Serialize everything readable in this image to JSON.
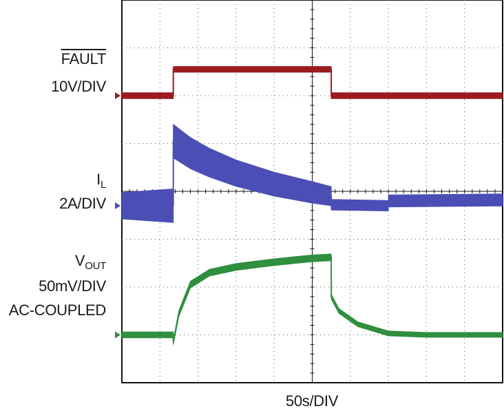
{
  "chart_data": {
    "type": "line",
    "title": "",
    "xlabel": "50s/DIV",
    "grid": true,
    "x_divisions": 10,
    "y_divisions": 8,
    "series": [
      {
        "name": "FAULT",
        "scale": "10V/DIV",
        "color": "#9b1b1f",
        "reference_level_div": 6.0,
        "points": [
          [
            0,
            6.0
          ],
          [
            1.35,
            6.0
          ],
          [
            1.35,
            6.55
          ],
          [
            5.5,
            6.55
          ],
          [
            5.5,
            6.0
          ],
          [
            10,
            6.0
          ]
        ]
      },
      {
        "name": "IL",
        "scale": "2A/DIV",
        "color": "#4b4eb5",
        "reference_level_div": 3.7,
        "points": [
          [
            0,
            3.7
          ],
          [
            1.35,
            3.7
          ],
          [
            1.35,
            5.05
          ],
          [
            1.8,
            4.8
          ],
          [
            2.3,
            4.6
          ],
          [
            3.0,
            4.38
          ],
          [
            4.0,
            4.15
          ],
          [
            5.0,
            3.98
          ],
          [
            5.5,
            3.9
          ],
          [
            5.5,
            3.72
          ],
          [
            7.0,
            3.7
          ],
          [
            7.0,
            3.8
          ],
          [
            10,
            3.82
          ]
        ],
        "ripple_div": [
          0.55,
          0.7,
          0.7,
          0.65,
          0.6,
          0.55,
          0.5,
          0.45,
          0.4,
          0.22,
          0.22,
          0.25,
          0.25
        ]
      },
      {
        "name": "VOUT",
        "scale": "50mV/DIV",
        "coupling": "AC-COUPLED",
        "color": "#2f8f3e",
        "reference_level_div": 1.0,
        "points": [
          [
            0,
            1.0
          ],
          [
            1.35,
            1.0
          ],
          [
            1.35,
            0.85
          ],
          [
            1.5,
            1.45
          ],
          [
            1.8,
            2.05
          ],
          [
            2.3,
            2.3
          ],
          [
            3.0,
            2.42
          ],
          [
            4.0,
            2.52
          ],
          [
            5.0,
            2.6
          ],
          [
            5.5,
            2.62
          ],
          [
            5.5,
            1.8
          ],
          [
            5.7,
            1.5
          ],
          [
            6.2,
            1.22
          ],
          [
            7.0,
            1.03
          ],
          [
            8.0,
            1.0
          ],
          [
            10,
            1.0
          ]
        ],
        "ripple_div": [
          0.12,
          0.12,
          0.1,
          0.12,
          0.14,
          0.14,
          0.14,
          0.14,
          0.14,
          0.14,
          0.1,
          0.1,
          0.1,
          0.1,
          0.1,
          0.1
        ]
      }
    ]
  },
  "labels": {
    "fault_name": "FAULT",
    "fault_scale": "10V/DIV",
    "il_main": "I",
    "il_sub": "L",
    "il_scale": "2A/DIV",
    "vout_main": "V",
    "vout_sub": "OUT",
    "vout_scale": "50mV/DIV",
    "vout_coupling": "AC-COUPLED",
    "xlabel": "50s/DIV"
  }
}
